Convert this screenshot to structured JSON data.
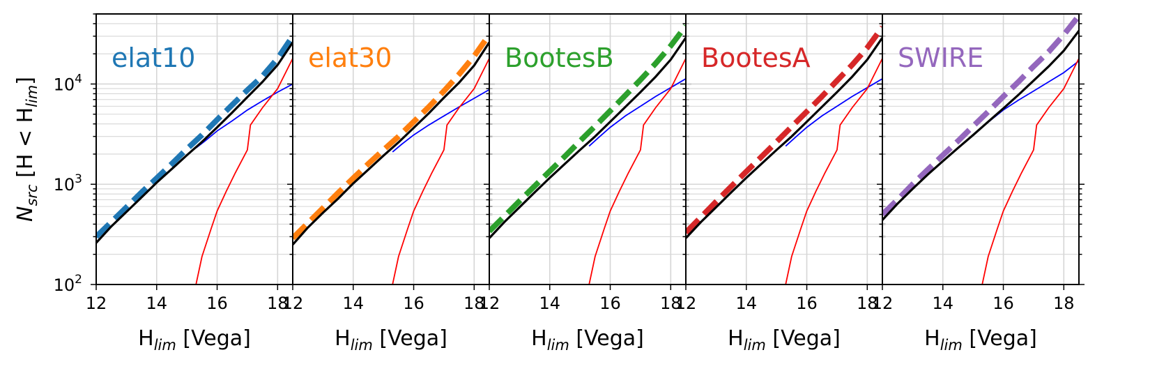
{
  "chart_data": {
    "type": "line",
    "layout": "5 panels side by side, shared log y axis",
    "y_axis": {
      "label_main": "N",
      "label_sub": "src",
      "label_rest": " [H < H",
      "label_sub2": "lim",
      "label_end": "]",
      "scale": "log",
      "ylim": [
        100,
        50000
      ],
      "ticks": [
        100,
        1000,
        10000
      ],
      "tick_labels": [
        {
          "base": "10",
          "exp": "2"
        },
        {
          "base": "10",
          "exp": "3"
        },
        {
          "base": "10",
          "exp": "4"
        }
      ]
    },
    "x_axis": {
      "label_main": "H",
      "label_sub": "lim",
      "label_rest": " [Vega]",
      "xlim": [
        12,
        18.5
      ],
      "ticks": [
        12,
        14,
        16,
        18
      ],
      "tick_labels": [
        "12",
        "14",
        "16",
        "18"
      ]
    },
    "grid": true,
    "panels": [
      {
        "label": "elat10",
        "color": "#1f77b4",
        "observed": {
          "x": [
            12,
            12.5,
            13,
            13.5,
            14,
            14.5,
            15,
            15.5,
            16,
            16.5,
            17,
            17.5,
            18,
            18.5
          ],
          "y": [
            300,
            420,
            590,
            830,
            1150,
            1600,
            2250,
            3100,
            4400,
            6200,
            8700,
            12000,
            18000,
            30000
          ]
        },
        "model_total": {
          "x": [
            12,
            12.5,
            13,
            13.5,
            14,
            14.5,
            15,
            15.5,
            16,
            16.5,
            17,
            17.5,
            18,
            18.5
          ],
          "y": [
            260,
            380,
            530,
            740,
            1040,
            1420,
            1950,
            2650,
            3700,
            5200,
            7400,
            10500,
            15500,
            26000
          ]
        },
        "model_stars": {
          "x": [
            15.3,
            15.5,
            15.8,
            16,
            16.3,
            16.6,
            17,
            17.1,
            17.5,
            18,
            18.5
          ],
          "y": [
            100,
            190,
            360,
            540,
            850,
            1300,
            2200,
            3900,
            5800,
            9000,
            18000
          ]
        },
        "model_galaxies": {
          "x": [
            15.3,
            15.6,
            16,
            16.5,
            17,
            17.5,
            18,
            18.5
          ],
          "y": [
            2300,
            2700,
            3400,
            4300,
            5500,
            6800,
            8300,
            10000
          ]
        }
      },
      {
        "label": "elat30",
        "color": "#ff7f0e",
        "observed": {
          "x": [
            12,
            12.5,
            13,
            13.5,
            14,
            14.5,
            15,
            15.5,
            16,
            16.5,
            17,
            17.5,
            18,
            18.5
          ],
          "y": [
            290,
            410,
            580,
            820,
            1150,
            1600,
            2200,
            3000,
            4200,
            5900,
            8500,
            12500,
            19000,
            31000
          ]
        },
        "model_total": {
          "x": [
            12,
            12.5,
            13,
            13.5,
            14,
            14.5,
            15,
            15.5,
            16,
            16.5,
            17,
            17.5,
            18,
            18.5
          ],
          "y": [
            250,
            370,
            520,
            720,
            1020,
            1400,
            1930,
            2620,
            3650,
            5100,
            7300,
            10300,
            15300,
            26000
          ]
        },
        "model_stars": {
          "x": [
            15.3,
            15.5,
            15.8,
            16,
            16.3,
            16.6,
            17,
            17.1,
            17.5,
            18,
            18.5
          ],
          "y": [
            100,
            190,
            360,
            540,
            850,
            1300,
            2200,
            3900,
            5800,
            9000,
            18000
          ]
        },
        "model_galaxies": {
          "x": [
            15.3,
            15.6,
            16,
            16.5,
            17,
            17.5,
            18,
            18.5
          ],
          "y": [
            2100,
            2500,
            3100,
            3900,
            4800,
            5900,
            7200,
            8800
          ]
        }
      },
      {
        "label": "BootesB",
        "color": "#2ca02c",
        "observed": {
          "x": [
            12,
            12.5,
            13,
            13.5,
            14,
            14.5,
            15,
            15.5,
            16,
            16.5,
            17,
            17.5,
            18,
            18.5
          ],
          "y": [
            340,
            480,
            680,
            960,
            1350,
            1900,
            2700,
            3800,
            5400,
            7700,
            11000,
            16000,
            24000,
            38000
          ]
        },
        "model_total": {
          "x": [
            12,
            12.5,
            13,
            13.5,
            14,
            14.5,
            15,
            15.5,
            16,
            16.5,
            17,
            17.5,
            18,
            18.5
          ],
          "y": [
            290,
            420,
            590,
            830,
            1160,
            1600,
            2200,
            3000,
            4200,
            5900,
            8300,
            11800,
            17500,
            29000
          ]
        },
        "model_stars": {
          "x": [
            15.3,
            15.5,
            15.8,
            16,
            16.3,
            16.6,
            17,
            17.1,
            17.5,
            18,
            18.5
          ],
          "y": [
            100,
            190,
            360,
            540,
            850,
            1300,
            2200,
            3900,
            5800,
            9000,
            18000
          ]
        },
        "model_galaxies": {
          "x": [
            15.3,
            15.6,
            16,
            16.5,
            17,
            17.5,
            18,
            18.5
          ],
          "y": [
            2400,
            2900,
            3700,
            4800,
            6000,
            7500,
            9200,
            11300
          ]
        }
      },
      {
        "label": "BootesA",
        "color": "#d62728",
        "observed": {
          "x": [
            12,
            12.5,
            13,
            13.5,
            14,
            14.5,
            15,
            15.5,
            16,
            16.5,
            17,
            17.5,
            18,
            18.5
          ],
          "y": [
            330,
            470,
            670,
            950,
            1340,
            1880,
            2650,
            3750,
            5300,
            7500,
            10800,
            15500,
            23000,
            37000
          ]
        },
        "model_total": {
          "x": [
            12,
            12.5,
            13,
            13.5,
            14,
            14.5,
            15,
            15.5,
            16,
            16.5,
            17,
            17.5,
            18,
            18.5
          ],
          "y": [
            290,
            420,
            590,
            830,
            1160,
            1600,
            2200,
            3000,
            4200,
            5900,
            8300,
            11800,
            17500,
            29000
          ]
        },
        "model_stars": {
          "x": [
            15.3,
            15.5,
            15.8,
            16,
            16.3,
            16.6,
            17,
            17.1,
            17.5,
            18,
            18.5
          ],
          "y": [
            100,
            190,
            360,
            540,
            850,
            1300,
            2200,
            3900,
            5800,
            9000,
            18000
          ]
        },
        "model_galaxies": {
          "x": [
            15.3,
            15.6,
            16,
            16.5,
            17,
            17.5,
            18,
            18.5
          ],
          "y": [
            2400,
            2900,
            3700,
            4800,
            6000,
            7500,
            9200,
            11300
          ]
        }
      },
      {
        "label": "SWIRE",
        "color": "#9467bd",
        "observed": {
          "x": [
            12,
            12.5,
            13,
            13.5,
            14,
            14.5,
            15,
            15.5,
            16,
            16.5,
            17,
            17.5,
            18,
            18.5
          ],
          "y": [
            500,
            700,
            1000,
            1400,
            1950,
            2700,
            3800,
            5300,
            7500,
            10500,
            15000,
            21000,
            31000,
            48000
          ]
        },
        "model_total": {
          "x": [
            12,
            12.5,
            13,
            13.5,
            14,
            14.5,
            15,
            15.5,
            16,
            16.5,
            17,
            17.5,
            18,
            18.5
          ],
          "y": [
            440,
            640,
            900,
            1250,
            1700,
            2300,
            3100,
            4200,
            5700,
            7800,
            10800,
            15000,
            21500,
            34000
          ]
        },
        "model_stars": {
          "x": [
            15.3,
            15.5,
            15.8,
            16,
            16.3,
            16.6,
            17,
            17.1,
            17.5,
            18,
            18.5
          ],
          "y": [
            100,
            190,
            360,
            540,
            850,
            1300,
            2200,
            3900,
            5800,
            9000,
            18000
          ]
        },
        "model_galaxies": {
          "x": [
            15.3,
            15.6,
            16,
            16.5,
            17,
            17.5,
            18,
            18.5
          ],
          "y": [
            3700,
            4400,
            5500,
            6900,
            8500,
            10500,
            13000,
            17000
          ]
        }
      }
    ],
    "series_styles": {
      "observed": {
        "style": "dashed",
        "color": "panel"
      },
      "model_total": {
        "style": "solid",
        "color": "#000000"
      },
      "model_stars": {
        "style": "solid",
        "color": "#ff0000"
      },
      "model_galaxies": {
        "style": "solid",
        "color": "#0000ff"
      }
    }
  }
}
